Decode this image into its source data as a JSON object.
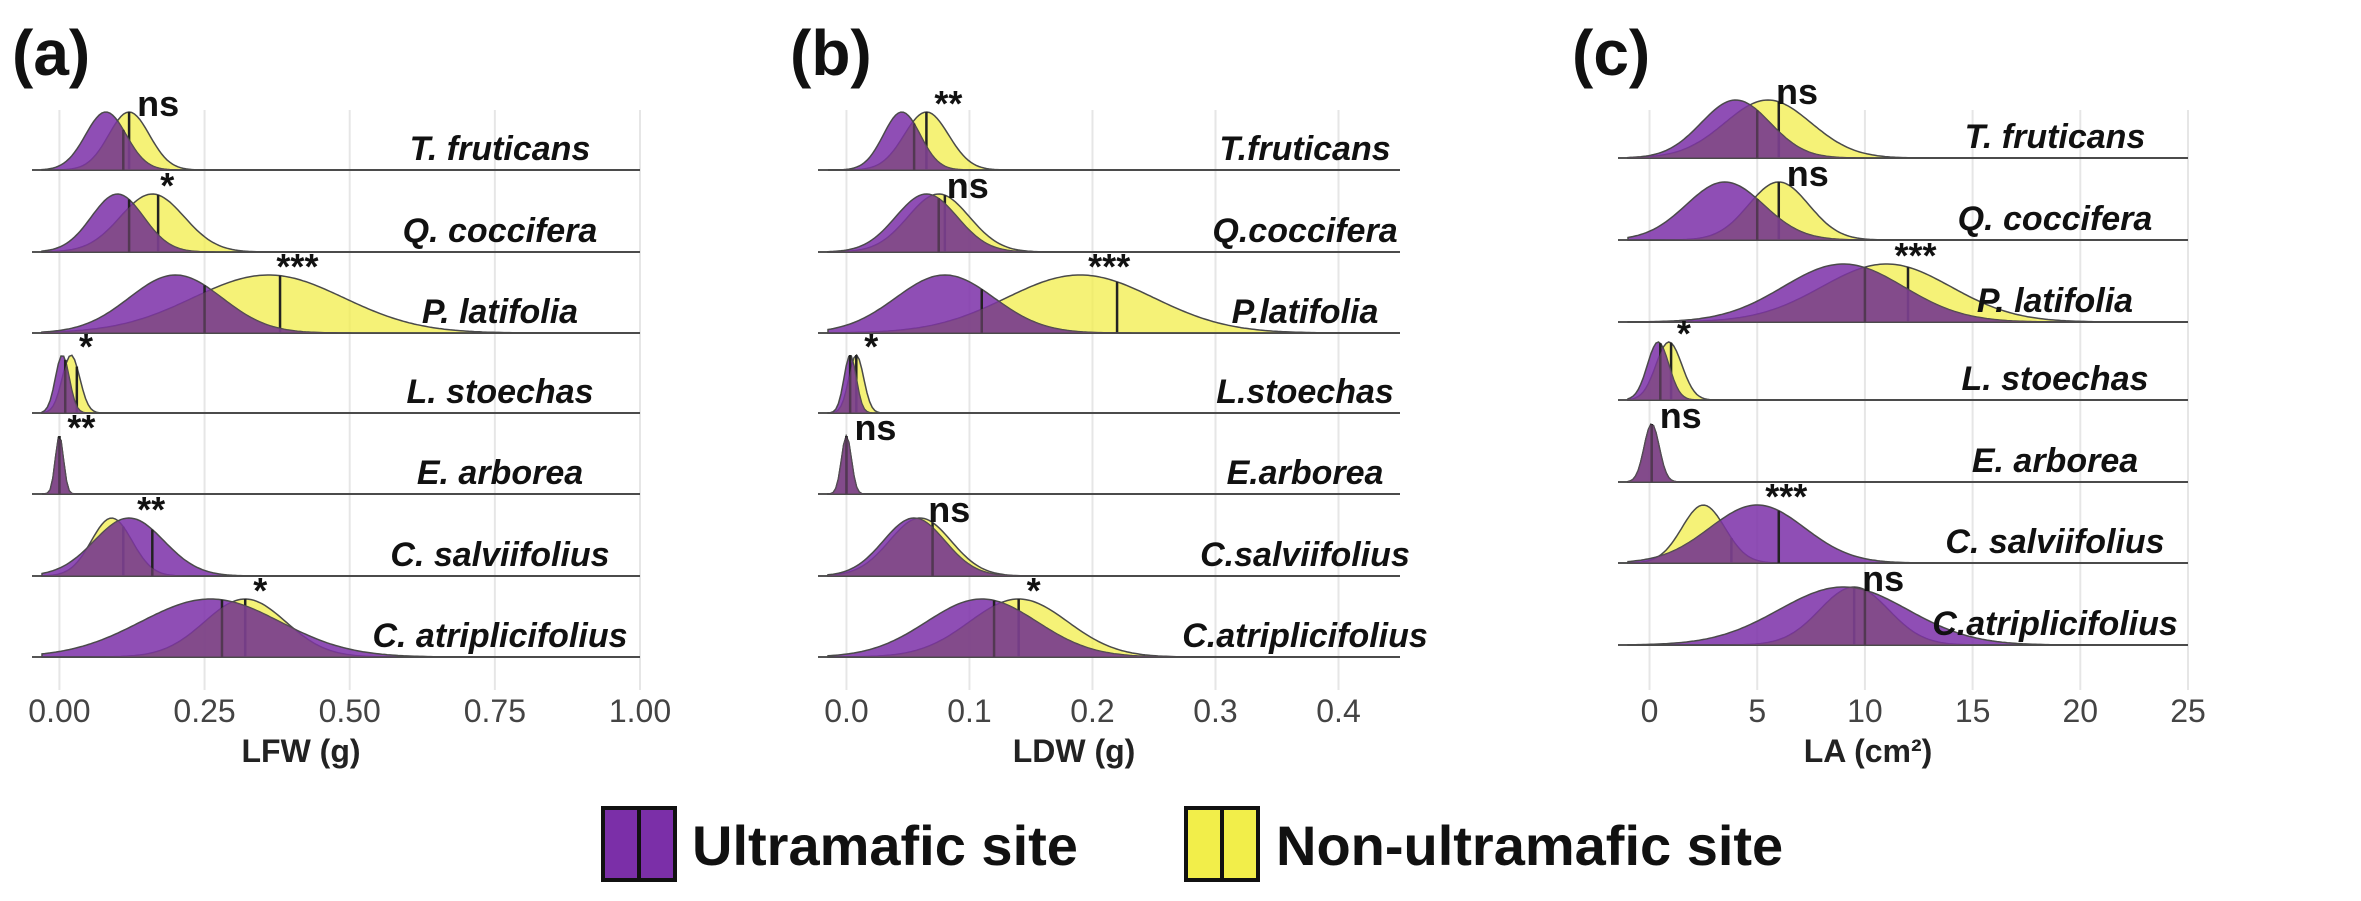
{
  "legend": {
    "ultramafic_label": "Ultramafic site",
    "nonultramafic_label": "Non-ultramafic site",
    "ultramafic_color": "#7b2fa8",
    "nonultramafic_color": "#f2ee4a",
    "overlap_color": "#7a4a7a"
  },
  "chart_data": [
    {
      "type": "ridgeline-density",
      "panel_label": "(a)",
      "xlabel": "LFW (g)",
      "xlim": [
        -0.03,
        1.0
      ],
      "xticks": [
        0.0,
        0.25,
        0.5,
        0.75,
        1.0
      ],
      "xtick_labels": [
        "0.00",
        "0.25",
        "0.50",
        "0.75",
        "1.00"
      ],
      "species": [
        {
          "name": "T. fruticans",
          "sig": "ns",
          "ultramafic": {
            "mode": 0.08,
            "sd": 0.035,
            "median": 0.11
          },
          "non_ultramafic": {
            "mode": 0.12,
            "sd": 0.035,
            "median": 0.12
          }
        },
        {
          "name": "Q. coccifera",
          "sig": "*",
          "ultramafic": {
            "mode": 0.1,
            "sd": 0.045,
            "median": 0.12
          },
          "non_ultramafic": {
            "mode": 0.16,
            "sd": 0.055,
            "median": 0.17
          }
        },
        {
          "name": "P. latifolia",
          "sig": "***",
          "ultramafic": {
            "mode": 0.2,
            "sd": 0.08,
            "median": 0.25
          },
          "non_ultramafic": {
            "mode": 0.36,
            "sd": 0.13,
            "median": 0.38
          }
        },
        {
          "name": "L. stoechas",
          "sig": "*",
          "ultramafic": {
            "mode": 0.005,
            "sd": 0.012,
            "median": 0.01
          },
          "non_ultramafic": {
            "mode": 0.02,
            "sd": 0.015,
            "median": 0.03
          }
        },
        {
          "name": "E. arborea",
          "sig": "**",
          "ultramafic": {
            "mode": 0.0,
            "sd": 0.007,
            "median": 0.0
          },
          "non_ultramafic": {
            "mode": 0.0,
            "sd": 0.007,
            "median": 0.0
          }
        },
        {
          "name": "C. salviifolius",
          "sig": "**",
          "ultramafic": {
            "mode": 0.12,
            "sd": 0.06,
            "median": 0.16
          },
          "non_ultramafic": {
            "mode": 0.09,
            "sd": 0.035,
            "median": 0.11
          }
        },
        {
          "name": "C. atriplicifolius",
          "sig": "*",
          "ultramafic": {
            "mode": 0.26,
            "sd": 0.12,
            "median": 0.28
          },
          "non_ultramafic": {
            "mode": 0.32,
            "sd": 0.07,
            "median": 0.32
          }
        }
      ]
    },
    {
      "type": "ridgeline-density",
      "panel_label": "(b)",
      "xlabel": "LDW (g)",
      "xlim": [
        -0.015,
        0.45
      ],
      "xticks": [
        0.0,
        0.1,
        0.2,
        0.3,
        0.4
      ],
      "xtick_labels": [
        "0.0",
        "0.1",
        "0.2",
        "0.3",
        "0.4"
      ],
      "species": [
        {
          "name": "T.fruticans",
          "sig": "**",
          "ultramafic": {
            "mode": 0.045,
            "sd": 0.015,
            "median": 0.055
          },
          "non_ultramafic": {
            "mode": 0.065,
            "sd": 0.018,
            "median": 0.065
          }
        },
        {
          "name": "Q.coccifera",
          "sig": "ns",
          "ultramafic": {
            "mode": 0.065,
            "sd": 0.025,
            "median": 0.075
          },
          "non_ultramafic": {
            "mode": 0.075,
            "sd": 0.025,
            "median": 0.08
          }
        },
        {
          "name": "P.latifolia",
          "sig": "***",
          "ultramafic": {
            "mode": 0.08,
            "sd": 0.04,
            "median": 0.11
          },
          "non_ultramafic": {
            "mode": 0.19,
            "sd": 0.06,
            "median": 0.22
          }
        },
        {
          "name": "L.stoechas",
          "sig": "*",
          "ultramafic": {
            "mode": 0.003,
            "sd": 0.005,
            "median": 0.003
          },
          "non_ultramafic": {
            "mode": 0.008,
            "sd": 0.006,
            "median": 0.008
          }
        },
        {
          "name": "E.arborea",
          "sig": "ns",
          "ultramafic": {
            "mode": 0.0,
            "sd": 0.004,
            "median": 0.0
          },
          "non_ultramafic": {
            "mode": 0.0,
            "sd": 0.004,
            "median": 0.0
          }
        },
        {
          "name": "C.salviifolius",
          "sig": "ns",
          "ultramafic": {
            "mode": 0.055,
            "sd": 0.025,
            "median": 0.07
          },
          "non_ultramafic": {
            "mode": 0.06,
            "sd": 0.025,
            "median": 0.07
          }
        },
        {
          "name": "C.atriplicifolius",
          "sig": "*",
          "ultramafic": {
            "mode": 0.11,
            "sd": 0.045,
            "median": 0.12
          },
          "non_ultramafic": {
            "mode": 0.14,
            "sd": 0.04,
            "median": 0.14
          }
        }
      ]
    },
    {
      "type": "ridgeline-density",
      "panel_label": "(c)",
      "xlabel": "LA (cm²)",
      "xlim": [
        -1.0,
        25.0
      ],
      "xticks": [
        0,
        5,
        10,
        15,
        20,
        25
      ],
      "xtick_labels": [
        "0",
        "5",
        "10",
        "15",
        "20",
        "25"
      ],
      "species": [
        {
          "name": "T. fruticans",
          "sig": "ns",
          "ultramafic": {
            "mode": 4.0,
            "sd": 1.6,
            "median": 5.0
          },
          "non_ultramafic": {
            "mode": 5.5,
            "sd": 2.0,
            "median": 6.0
          }
        },
        {
          "name": "Q. coccifera",
          "sig": "ns",
          "ultramafic": {
            "mode": 3.5,
            "sd": 1.8,
            "median": 5.0
          },
          "non_ultramafic": {
            "mode": 6.0,
            "sd": 1.4,
            "median": 6.0
          }
        },
        {
          "name": "P. latifolia",
          "sig": "***",
          "ultramafic": {
            "mode": 9.0,
            "sd": 2.8,
            "median": 10.0
          },
          "non_ultramafic": {
            "mode": 11.0,
            "sd": 3.0,
            "median": 12.0
          }
        },
        {
          "name": "L. stoechas",
          "sig": "*",
          "ultramafic": {
            "mode": 0.4,
            "sd": 0.5,
            "median": 0.5
          },
          "non_ultramafic": {
            "mode": 0.9,
            "sd": 0.6,
            "median": 1.0
          }
        },
        {
          "name": "E. arborea",
          "sig": "ns",
          "ultramafic": {
            "mode": 0.1,
            "sd": 0.35,
            "median": 0.1
          },
          "non_ultramafic": {
            "mode": 0.1,
            "sd": 0.35,
            "median": 0.1
          }
        },
        {
          "name": "C. salviifolius",
          "sig": "***",
          "ultramafic": {
            "mode": 5.0,
            "sd": 2.2,
            "median": 6.0
          },
          "non_ultramafic": {
            "mode": 2.5,
            "sd": 1.0,
            "median": 3.8
          }
        },
        {
          "name": "C.atriplicifolius",
          "sig": "ns",
          "ultramafic": {
            "mode": 9.0,
            "sd": 3.0,
            "median": 10.0
          },
          "non_ultramafic": {
            "mode": 9.5,
            "sd": 1.6,
            "median": 9.5
          }
        }
      ]
    }
  ]
}
